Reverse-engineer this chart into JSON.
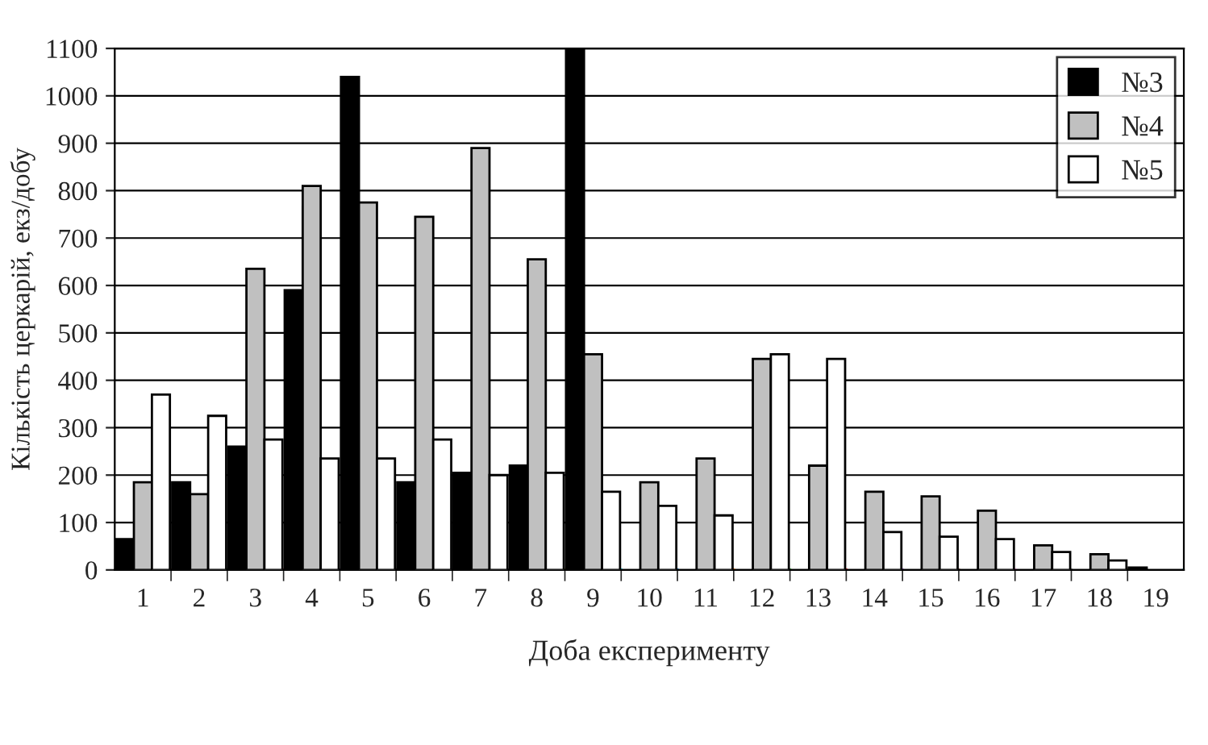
{
  "chart_data": {
    "type": "bar",
    "xlabel": "Доба експерименту",
    "ylabel": "Кількість церкарій, екз/добу",
    "categories": [
      "1",
      "2",
      "3",
      "4",
      "5",
      "6",
      "7",
      "8",
      "9",
      "10",
      "11",
      "12",
      "13",
      "14",
      "15",
      "16",
      "17",
      "18",
      "19"
    ],
    "series": [
      {
        "name": "№3",
        "color": "#000000",
        "values": [
          65,
          185,
          260,
          590,
          1040,
          185,
          205,
          220,
          1100,
          null,
          null,
          null,
          null,
          null,
          null,
          null,
          null,
          null,
          5
        ]
      },
      {
        "name": "№4",
        "color": "#c0c0c0",
        "values": [
          185,
          160,
          635,
          810,
          775,
          745,
          890,
          655,
          455,
          185,
          235,
          445,
          220,
          165,
          155,
          125,
          52,
          33,
          null
        ]
      },
      {
        "name": "№5",
        "color": "#ffffff",
        "values": [
          370,
          325,
          275,
          235,
          235,
          275,
          200,
          205,
          165,
          135,
          115,
          455,
          445,
          80,
          70,
          65,
          38,
          20,
          null
        ]
      }
    ],
    "ylim": [
      0,
      1100
    ],
    "yticks": [
      0,
      100,
      200,
      300,
      400,
      500,
      600,
      700,
      800,
      900,
      1000,
      1100
    ],
    "grid": "y",
    "legend": "top right"
  }
}
